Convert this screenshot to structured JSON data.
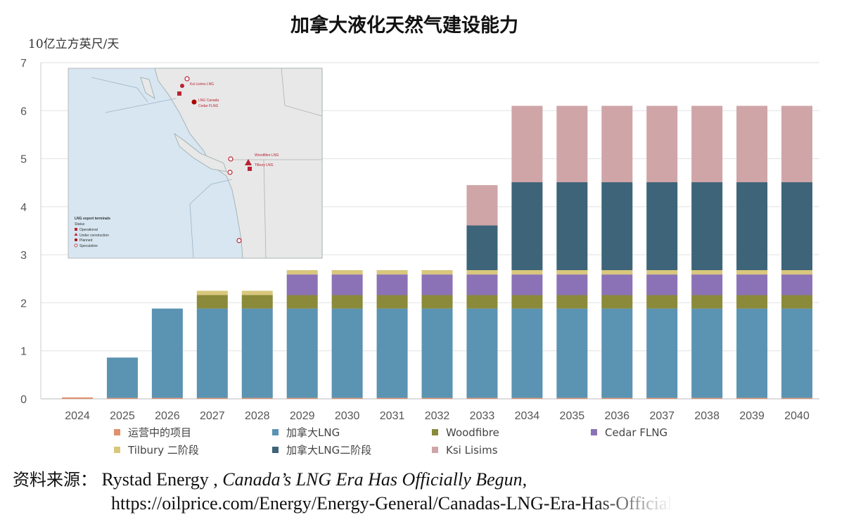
{
  "chart_data": {
    "type": "bar",
    "stacked": true,
    "title": "加拿大液化天然气建设能力",
    "ylabel": "10亿立方英尺/天",
    "ylim": [
      0,
      7
    ],
    "yticks": [
      0,
      1,
      2,
      3,
      4,
      5,
      6,
      7
    ],
    "categories": [
      "2024",
      "2025",
      "2026",
      "2027",
      "2028",
      "2029",
      "2030",
      "2031",
      "2032",
      "2033",
      "2034",
      "2035",
      "2036",
      "2037",
      "2038",
      "2039",
      "2040"
    ],
    "series": [
      {
        "name": "运营中的项目",
        "color": "#e0906a",
        "values": [
          0.03,
          0.02,
          0.02,
          0.02,
          0.02,
          0.02,
          0.02,
          0.02,
          0.02,
          0.02,
          0.02,
          0.02,
          0.02,
          0.02,
          0.02,
          0.02,
          0.02
        ]
      },
      {
        "name": "加拿大LNG",
        "color": "#5b93b2",
        "values": [
          0,
          0.84,
          1.86,
          1.86,
          1.86,
          1.86,
          1.86,
          1.86,
          1.86,
          1.86,
          1.86,
          1.86,
          1.86,
          1.86,
          1.86,
          1.86,
          1.86
        ]
      },
      {
        "name": "Woodfibre",
        "color": "#8a8a3a",
        "values": [
          0,
          0,
          0,
          0.28,
          0.28,
          0.28,
          0.28,
          0.28,
          0.28,
          0.28,
          0.28,
          0.28,
          0.28,
          0.28,
          0.28,
          0.28,
          0.28
        ]
      },
      {
        "name": "Cedar FLNG",
        "color": "#8b72b6",
        "values": [
          0,
          0,
          0,
          0,
          0,
          0.43,
          0.43,
          0.43,
          0.43,
          0.43,
          0.43,
          0.43,
          0.43,
          0.43,
          0.43,
          0.43,
          0.43
        ]
      },
      {
        "name": "Tilbury 二阶段",
        "color": "#d8c77c",
        "values": [
          0,
          0,
          0,
          0.09,
          0.09,
          0.09,
          0.09,
          0.09,
          0.09,
          0.09,
          0.09,
          0.09,
          0.09,
          0.09,
          0.09,
          0.09,
          0.09
        ]
      },
      {
        "name": "加拿大LNG二阶段",
        "color": "#3d6478",
        "values": [
          0,
          0,
          0,
          0,
          0,
          0,
          0,
          0,
          0,
          0.93,
          1.83,
          1.83,
          1.83,
          1.83,
          1.83,
          1.83,
          1.83
        ]
      },
      {
        "name": "Ksi Lisims",
        "color": "#cfa5a7",
        "values": [
          0,
          0,
          0,
          0,
          0,
          0,
          0,
          0,
          0,
          0.84,
          1.59,
          1.59,
          1.59,
          1.59,
          1.59,
          1.59,
          1.59
        ]
      }
    ]
  },
  "inset_map": {
    "legend_title": "LNG export terminals",
    "legend_subtitle": "Status",
    "legend_items": [
      "Operational",
      "Under construction",
      "Planned",
      "Speculative"
    ],
    "labels": [
      "Ksi Lisims LNG",
      "LNG Canada",
      "Cedar FLNG",
      "Woodfibre LNG",
      "Tilbury LNG"
    ]
  },
  "source": {
    "label": "资料来源：",
    "publisher": "Rystad Energy ,",
    "article_title": "Canada’s LNG Era Has Officially Begun,",
    "url": "https://oilprice.com/Energy/Energy-General/Canadas-LNG-Era-Has-Officially-Begun"
  }
}
